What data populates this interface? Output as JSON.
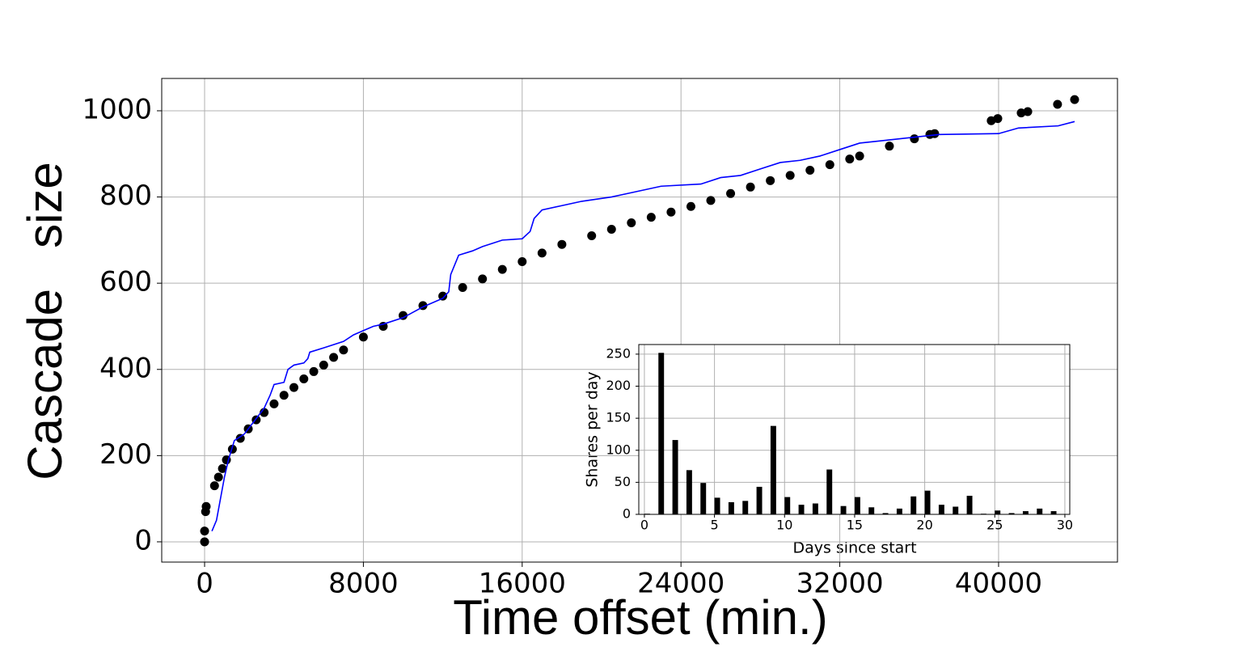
{
  "chart_data": [
    {
      "type": "combo",
      "xlabel": "Time offset (min.)",
      "ylabel": "Cascade   size",
      "xlim": [
        -2160,
        45990
      ],
      "ylim": [
        -47,
        1075
      ],
      "xticks": [
        0,
        8000,
        16000,
        24000,
        32000,
        40000
      ],
      "yticks": [
        0,
        200,
        400,
        600,
        800,
        1000
      ],
      "grid": true,
      "series": [
        {
          "mark": "dot",
          "color": "#000000",
          "x": [
            0,
            0,
            50,
            80,
            500,
            700,
            900,
            1100,
            1400,
            1800,
            2200,
            2600,
            3000,
            3500,
            4000,
            4500,
            5000,
            5500,
            6000,
            6500,
            7000,
            8000,
            9000,
            10000,
            11000,
            12000,
            13000,
            14000,
            15000,
            16000,
            17000,
            18000,
            19500,
            20500,
            21500,
            22500,
            23500,
            24500,
            25500,
            26500,
            27500,
            28500,
            29500,
            30500,
            31500,
            32500,
            33000,
            34500,
            35760,
            36540,
            36780,
            39630,
            39960,
            41140,
            41470,
            42970,
            43830
          ],
          "values": [
            0,
            25,
            70,
            82,
            130,
            150,
            170,
            190,
            215,
            240,
            262,
            283,
            300,
            320,
            340,
            358,
            378,
            395,
            410,
            428,
            445,
            475,
            500,
            525,
            548,
            570,
            590,
            610,
            632,
            650,
            670,
            690,
            710,
            725,
            740,
            753,
            765,
            778,
            792,
            808,
            823,
            838,
            850,
            862,
            875,
            888,
            895,
            918,
            935,
            945,
            947,
            977,
            982,
            995,
            998,
            1015,
            1026
          ]
        },
        {
          "mark": "line",
          "color": "#0000ff",
          "x": [
            370,
            600,
            800,
            1000,
            1200,
            1500,
            2000,
            2500,
            3000,
            3300,
            3500,
            4000,
            4200,
            4500,
            5000,
            5200,
            5300,
            6000,
            7000,
            7500,
            8000,
            8500,
            9000,
            10000,
            11000,
            12000,
            12300,
            12400,
            12800,
            13500,
            14000,
            15000,
            16000,
            16400,
            16600,
            17000,
            18000,
            19000,
            20500,
            21500,
            23000,
            25000,
            26000,
            27000,
            28000,
            29000,
            30000,
            31000,
            32000,
            33000,
            34000,
            37000,
            40000,
            41000,
            43000,
            43830
          ],
          "values": [
            25,
            50,
            100,
            150,
            190,
            235,
            250,
            280,
            310,
            340,
            365,
            370,
            400,
            410,
            415,
            425,
            440,
            450,
            465,
            480,
            490,
            500,
            505,
            520,
            545,
            565,
            580,
            620,
            665,
            675,
            685,
            700,
            703,
            720,
            750,
            770,
            780,
            790,
            800,
            810,
            825,
            830,
            845,
            850,
            865,
            880,
            885,
            895,
            910,
            925,
            930,
            945,
            947,
            960,
            965,
            975
          ]
        }
      ]
    },
    {
      "type": "bar",
      "xlabel": "Days since start",
      "ylabel": "Shares per day",
      "x": [
        0,
        1,
        2,
        3,
        4,
        5,
        6,
        7,
        8,
        9,
        10,
        11,
        12,
        13,
        14,
        15,
        16,
        17,
        18,
        19,
        20,
        21,
        22,
        23,
        24,
        25,
        26,
        27,
        28,
        29
      ],
      "values": [
        1,
        252,
        116,
        69,
        49,
        26,
        19,
        21,
        43,
        138,
        27,
        15,
        17,
        70,
        13,
        27,
        11,
        2,
        9,
        28,
        37,
        15,
        12,
        29,
        1,
        6,
        2,
        5,
        9,
        5
      ],
      "color": "#000000",
      "xlim": [
        -0.4,
        30.35
      ],
      "ylim": [
        0,
        265
      ],
      "xticks": [
        0,
        5,
        10,
        15,
        20,
        25,
        30
      ],
      "yticks": [
        0,
        50,
        100,
        150,
        200,
        250
      ],
      "grid": true
    }
  ]
}
